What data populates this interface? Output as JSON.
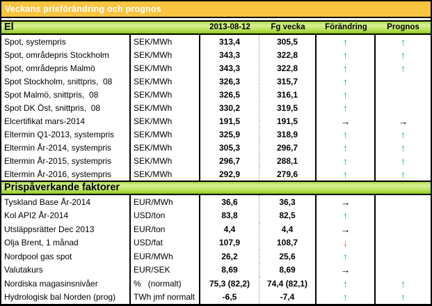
{
  "title": "Veckans prisförändring och prognos",
  "columns": [
    "2013-08-12",
    "Fg vecka",
    "Förändring",
    "Prognos"
  ],
  "colors": {
    "title_bg": "#FBC440",
    "arrow_up": "#00B273",
    "arrow_down": "#FF4040",
    "arrow_right": "#000000"
  },
  "arrow_glyphs": {
    "up": "↑",
    "right": "→",
    "down": "↓"
  },
  "sections": [
    {
      "label": "El",
      "rows": [
        {
          "label": "Spot, systempris",
          "unit": "SEK/MWh",
          "current": "313,4",
          "prev": "305,5",
          "change": "up",
          "forecast": "up"
        },
        {
          "label": "Spot, områdepris Stockholm",
          "unit": "SEK/MWh",
          "current": "343,3",
          "prev": "322,8",
          "change": "up",
          "forecast": "up"
        },
        {
          "label": "Spot, områdepris Malmö",
          "unit": "SEK/MWh",
          "current": "343,3",
          "prev": "322,8",
          "change": "up",
          "forecast": "up"
        },
        {
          "label": "Spot Stockholm, snittpris,  08",
          "unit": "SEK/MWh",
          "current": "326,3",
          "prev": "315,7",
          "change": "up",
          "forecast": ""
        },
        {
          "label": "Spot Malmö, snittpris,  08",
          "unit": "SEK/MWh",
          "current": "326,5",
          "prev": "316,1",
          "change": "up",
          "forecast": ""
        },
        {
          "label": "Spot DK Öst, snittpris,  08",
          "unit": "SEK/MWh",
          "current": "330,2",
          "prev": "319,5",
          "change": "up",
          "forecast": ""
        },
        {
          "label": "Elcertifikat mars-2014",
          "unit": "SEK/MWh",
          "current": "191,5",
          "prev": "191,5",
          "change": "right",
          "forecast": "right"
        },
        {
          "label": "Eltermin Q1-2013, systempris",
          "unit": "SEK/MWh",
          "current": "325,9",
          "prev": "318,9",
          "change": "up",
          "forecast": "up"
        },
        {
          "label": "Eltermin År-2014, systempris",
          "unit": "SEK/MWh",
          "current": "305,3",
          "prev": "296,7",
          "change": "up",
          "forecast": "up"
        },
        {
          "label": "Eltermin År-2015, systempris",
          "unit": "SEK/MWh",
          "current": "296,7",
          "prev": "288,1",
          "change": "up",
          "forecast": "up"
        },
        {
          "label": "Eltermin År-2016, systempris",
          "unit": "SEK/MWh",
          "current": "292,9",
          "prev": "279,6",
          "change": "up",
          "forecast": "up"
        }
      ]
    },
    {
      "label": "Prispåverkande faktorer",
      "rows": [
        {
          "label": "Tyskland Base År-2014",
          "unit": "EUR/MWh",
          "current": "36,6",
          "prev": "36,3",
          "change": "right",
          "forecast": ""
        },
        {
          "label": "Kol API2 År-2014",
          "unit": "USD/ton",
          "current": "83,8",
          "prev": "82,5",
          "change": "up",
          "forecast": ""
        },
        {
          "label": "Utsläppsrätter Dec 2013",
          "unit": "EUR/ton",
          "current": "4,4",
          "prev": "4,4",
          "change": "right",
          "forecast": ""
        },
        {
          "label": "Olja Brent, 1 månad",
          "unit": "USD/fat",
          "current": "107,9",
          "prev": "108,7",
          "change": "down",
          "forecast": ""
        },
        {
          "label": "Nordpool gas spot",
          "unit": "EUR/MWh",
          "current": "26,2",
          "prev": "25,6",
          "change": "up",
          "forecast": ""
        },
        {
          "label": "Valutakurs",
          "unit": "EUR/SEK",
          "current": "8,69",
          "prev": "8,69",
          "change": "right",
          "forecast": ""
        },
        {
          "label": "Nordiska magasinsnivåer",
          "unit": "%   (normalt)",
          "current": "75,3 (82,2)",
          "prev": "74,4 (82,1)",
          "change": "up",
          "forecast": "up"
        },
        {
          "label": "Hydrologisk bal Norden (prog)",
          "unit": "TWh jmf normalt",
          "current": "-6,5",
          "prev": "-7,4",
          "change": "up",
          "forecast": "up"
        }
      ]
    }
  ]
}
